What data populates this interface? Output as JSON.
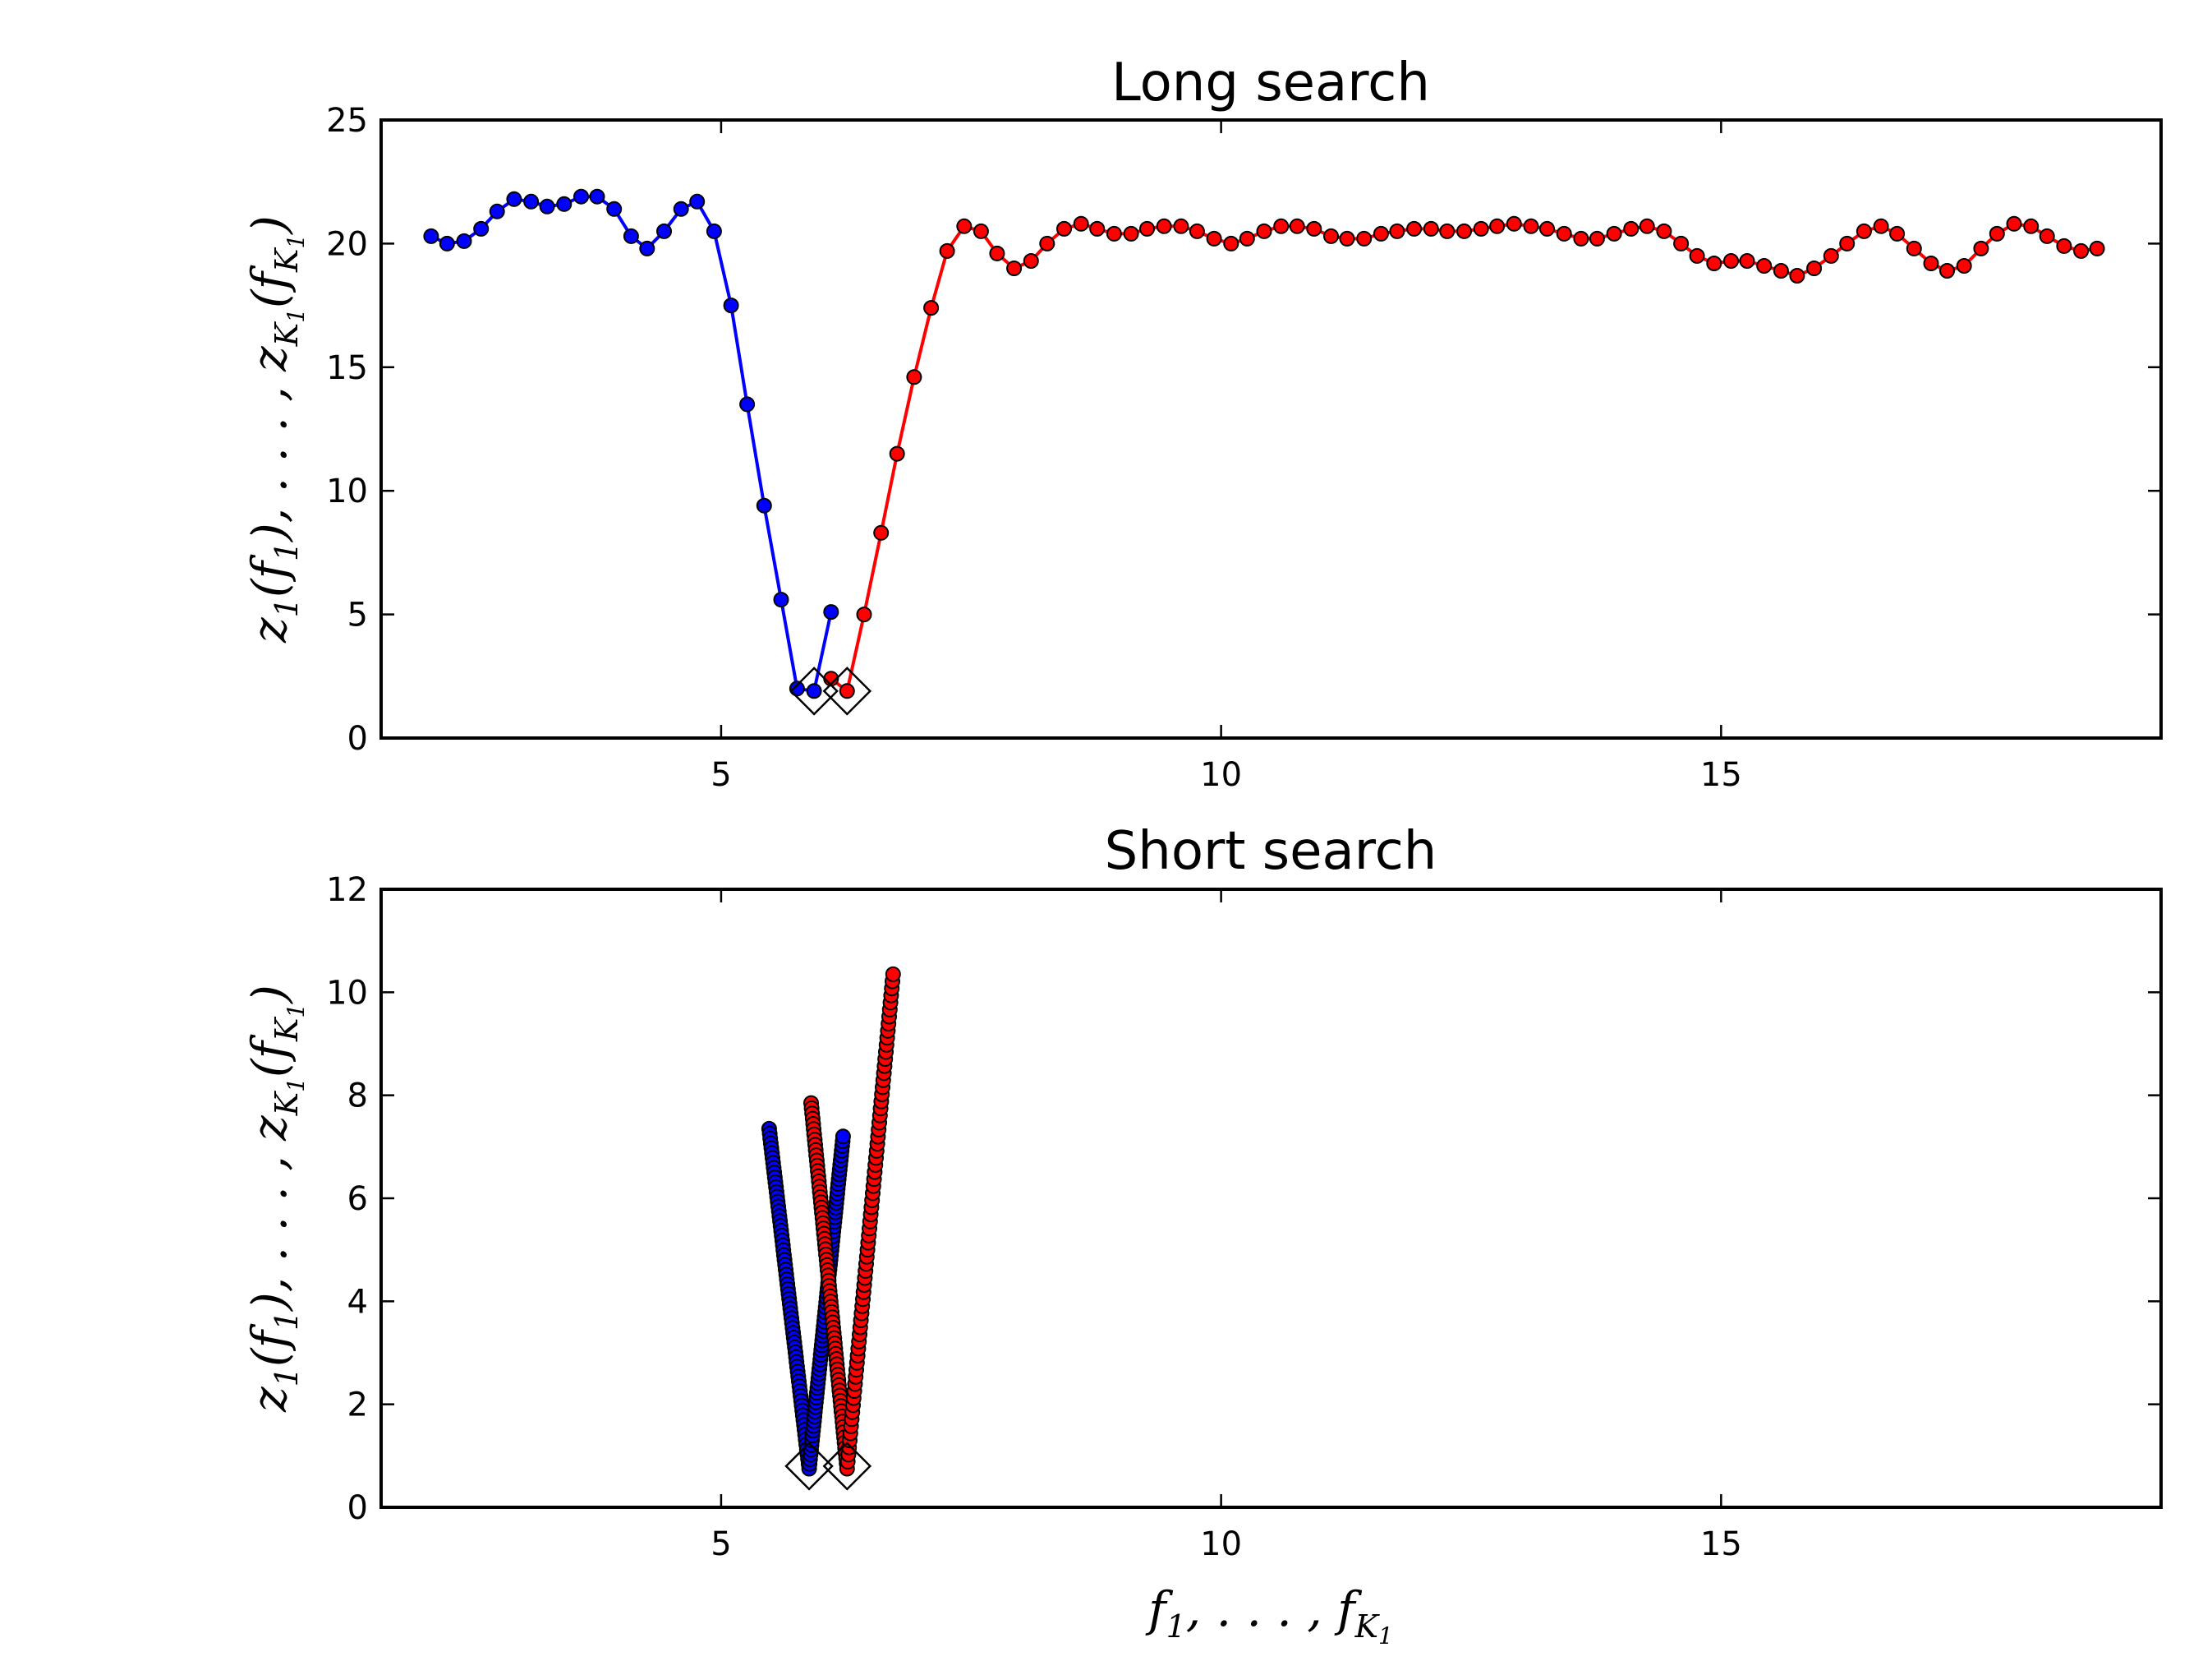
{
  "chart_data": [
    {
      "type": "line",
      "title": "Long search",
      "xlim": [
        1.6,
        19.4
      ],
      "ylim": [
        0,
        25
      ],
      "xticks": [
        5,
        10,
        15
      ],
      "yticks": [
        0,
        5,
        10,
        15,
        20,
        25
      ],
      "colors": {
        "blue": "#0000ff",
        "red": "#ff0000"
      },
      "series": [
        {
          "color": "blue",
          "x": [
            2.1,
            2.26,
            2.43,
            2.6,
            2.76,
            2.93,
            3.1,
            3.26,
            3.43,
            3.6,
            3.76,
            3.93,
            4.1,
            4.26,
            4.43,
            4.6,
            4.76,
            4.93,
            5.1,
            5.26,
            5.43,
            5.6,
            5.76,
            5.93,
            6.1
          ],
          "y": [
            20.3,
            20.0,
            20.1,
            20.6,
            21.3,
            21.8,
            21.7,
            21.5,
            21.6,
            21.9,
            21.9,
            21.4,
            20.3,
            19.8,
            20.5,
            21.4,
            21.7,
            20.5,
            17.5,
            13.5,
            9.4,
            5.6,
            2.0,
            1.9,
            5.1
          ]
        },
        {
          "color": "red",
          "x": [
            6.1,
            6.26,
            6.43,
            6.6,
            6.76,
            6.93,
            7.1,
            7.26,
            7.43,
            7.6,
            7.76,
            7.93,
            8.1,
            8.26,
            8.43,
            8.6,
            8.76,
            8.93,
            9.1,
            9.26,
            9.43,
            9.6,
            9.76,
            9.93,
            10.1,
            10.26,
            10.43,
            10.6,
            10.76,
            10.93,
            11.1,
            11.26,
            11.43,
            11.6,
            11.76,
            11.93,
            12.1,
            12.26,
            12.43,
            12.6,
            12.76,
            12.93,
            13.1,
            13.26,
            13.43,
            13.6,
            13.76,
            13.93,
            14.1,
            14.26,
            14.43,
            14.6,
            14.76,
            14.93,
            15.1,
            15.26,
            15.43,
            15.6,
            15.76,
            15.93,
            16.1,
            16.26,
            16.43,
            16.6,
            16.76,
            16.93,
            17.1,
            17.26,
            17.43,
            17.6,
            17.76,
            17.93,
            18.1,
            18.26,
            18.43,
            18.6,
            18.76
          ],
          "y": [
            2.4,
            1.9,
            5.0,
            8.3,
            11.5,
            14.6,
            17.4,
            19.7,
            20.7,
            20.5,
            19.6,
            19.0,
            19.3,
            20.0,
            20.6,
            20.8,
            20.6,
            20.4,
            20.4,
            20.6,
            20.7,
            20.7,
            20.5,
            20.2,
            20.0,
            20.2,
            20.5,
            20.7,
            20.7,
            20.6,
            20.3,
            20.2,
            20.2,
            20.4,
            20.5,
            20.6,
            20.6,
            20.5,
            20.5,
            20.6,
            20.7,
            20.8,
            20.7,
            20.6,
            20.4,
            20.2,
            20.2,
            20.4,
            20.6,
            20.7,
            20.5,
            20.0,
            19.5,
            19.2,
            19.3,
            19.3,
            19.1,
            18.9,
            18.7,
            19.0,
            19.5,
            20.0,
            20.5,
            20.7,
            20.4,
            19.8,
            19.2,
            18.9,
            19.1,
            19.8,
            20.4,
            20.8,
            20.7,
            20.3,
            19.9,
            19.7,
            19.8
          ]
        }
      ],
      "markers": [
        {
          "x": 5.93,
          "y": 1.9
        },
        {
          "x": 6.26,
          "y": 1.9
        }
      ]
    },
    {
      "type": "line",
      "title": "Short search",
      "xlim": [
        1.6,
        19.4
      ],
      "ylim": [
        0,
        12
      ],
      "xticks": [
        5,
        10,
        15
      ],
      "yticks": [
        0,
        2,
        4,
        6,
        8,
        10,
        12
      ],
      "colors": {
        "blue": "#0000ff",
        "red": "#ff0000"
      },
      "series": [
        {
          "color": "blue",
          "shape": "v",
          "x_start": 5.48,
          "y_start": 7.35,
          "x_min": 5.88,
          "y_min": 0.75,
          "x_end": 6.22,
          "y_end": 7.2,
          "points_per_leg": 70
        },
        {
          "color": "red",
          "shape": "v",
          "x_start": 5.9,
          "y_start": 7.85,
          "x_min": 6.26,
          "y_min": 0.75,
          "x_end": 6.72,
          "y_end": 10.35,
          "points_per_leg": 70
        }
      ],
      "markers": [
        {
          "x": 5.88,
          "y": 0.8
        },
        {
          "x": 6.26,
          "y": 0.8
        }
      ]
    }
  ]
}
